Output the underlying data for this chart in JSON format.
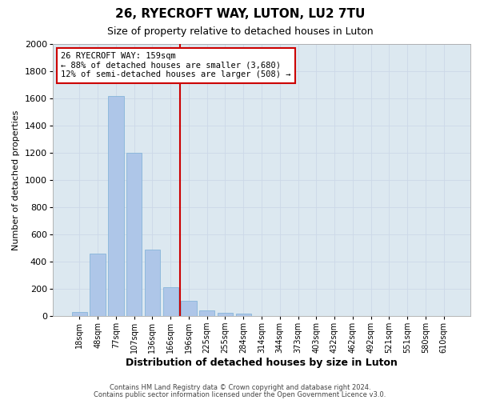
{
  "title": "26, RYECROFT WAY, LUTON, LU2 7TU",
  "subtitle": "Size of property relative to detached houses in Luton",
  "xlabel": "Distribution of detached houses by size in Luton",
  "ylabel": "Number of detached properties",
  "footnote1": "Contains HM Land Registry data © Crown copyright and database right 2024.",
  "footnote2": "Contains public sector information licensed under the Open Government Licence v3.0.",
  "bar_labels": [
    "18sqm",
    "48sqm",
    "77sqm",
    "107sqm",
    "136sqm",
    "166sqm",
    "196sqm",
    "225sqm",
    "255sqm",
    "284sqm",
    "314sqm",
    "344sqm",
    "373sqm",
    "403sqm",
    "432sqm",
    "462sqm",
    "492sqm",
    "521sqm",
    "551sqm",
    "580sqm",
    "610sqm"
  ],
  "bar_values": [
    30,
    460,
    1620,
    1200,
    490,
    210,
    110,
    40,
    25,
    15,
    0,
    0,
    0,
    0,
    0,
    0,
    0,
    0,
    0,
    0,
    0
  ],
  "bar_color": "#aec6e8",
  "bar_edge_color": "#7aafd6",
  "vline_x": 5.5,
  "vline_color": "#cc0000",
  "annotation_text": "26 RYECROFT WAY: 159sqm\n← 88% of detached houses are smaller (3,680)\n12% of semi-detached houses are larger (508) →",
  "annotation_box_color": "#ffffff",
  "annotation_box_edge": "#cc0000",
  "ylim": [
    0,
    2000
  ],
  "yticks": [
    0,
    200,
    400,
    600,
    800,
    1000,
    1200,
    1400,
    1600,
    1800,
    2000
  ],
  "grid_color": "#ccd8e8",
  "bg_color": "#dce8f0",
  "fig_bg_color": "#ffffff",
  "title_fontsize": 11,
  "subtitle_fontsize": 9,
  "ylabel_fontsize": 8,
  "xlabel_fontsize": 9,
  "tick_fontsize": 7,
  "footnote_fontsize": 6
}
